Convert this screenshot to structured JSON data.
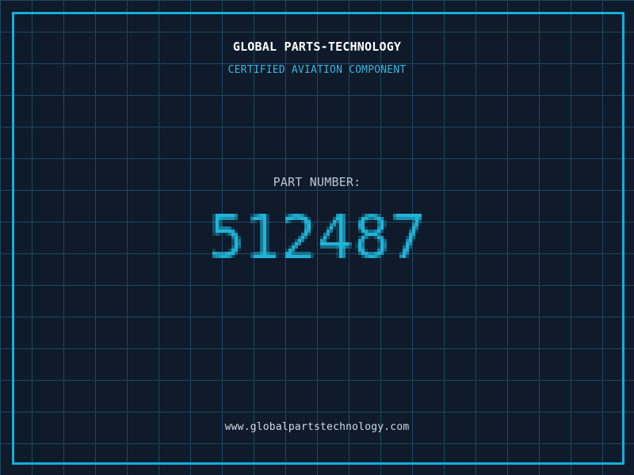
{
  "header": {
    "title": "GLOBAL PARTS-TECHNOLOGY",
    "subtitle": "CERTIFIED AVIATION COMPONENT"
  },
  "part": {
    "label": "PART NUMBER:",
    "value": "512487"
  },
  "footer": {
    "url": "www.globalpartstechnology.com"
  },
  "colors": {
    "background": "#0f1a2b",
    "grid_line": "#1b4a63",
    "frame": "#12b0d8",
    "title": "#ffffff",
    "subtitle": "#38b6d9",
    "label": "#b9c6ce",
    "part_number": "#1fb5d8",
    "url": "#cfdbe2"
  }
}
